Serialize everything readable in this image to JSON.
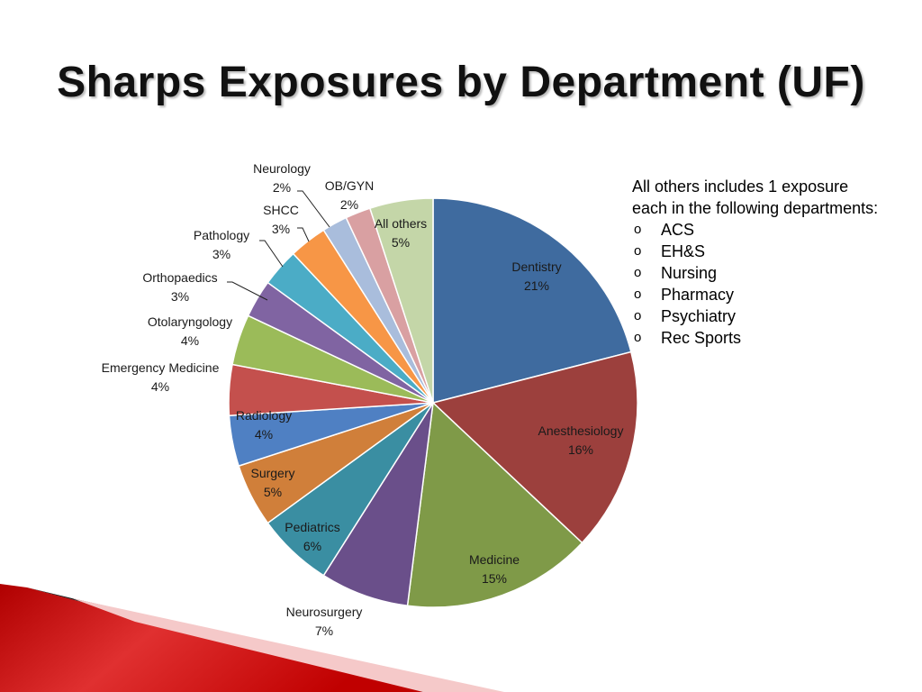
{
  "slide": {
    "title": "Sharps Exposures by Department (UF)"
  },
  "note": {
    "text_line1": "All others includes 1 exposure",
    "text_line2": "each in the following departments:",
    "bullet_glyph": "o",
    "items": [
      "ACS",
      "EH&S",
      "Nursing",
      "Pharmacy",
      "Psychiatry",
      "Rec Sports"
    ]
  },
  "chart_data": {
    "type": "pie",
    "title": "",
    "start": "12 o'clock",
    "direction": "clockwise",
    "slices": [
      {
        "name": "Dentistry",
        "value": 21,
        "label": "21%",
        "color": "#3f6b9f"
      },
      {
        "name": "Anesthesiology",
        "value": 16,
        "label": "16%",
        "color": "#9c403d"
      },
      {
        "name": "Medicine",
        "value": 15,
        "label": "15%",
        "color": "#7f9a48"
      },
      {
        "name": "Neurosurgery",
        "value": 7,
        "label": "7%",
        "color": "#6a4f8a"
      },
      {
        "name": "Pediatrics",
        "value": 6,
        "label": "6%",
        "color": "#3a8ea2"
      },
      {
        "name": "Surgery",
        "value": 5,
        "label": "5%",
        "color": "#d07f3a"
      },
      {
        "name": "Radiology",
        "value": 4,
        "label": "4%",
        "color": "#4f80c3"
      },
      {
        "name": "Emergency Medicine",
        "value": 4,
        "label": "4%",
        "color": "#c4504d"
      },
      {
        "name": "Otolaryngology",
        "value": 4,
        "label": "4%",
        "color": "#9bbb59"
      },
      {
        "name": "Orthopaedics",
        "value": 3,
        "label": "3%",
        "color": "#8064a2"
      },
      {
        "name": "Pathology",
        "value": 3,
        "label": "3%",
        "color": "#4bacc6"
      },
      {
        "name": "SHCC",
        "value": 3,
        "label": "3%",
        "color": "#f79646"
      },
      {
        "name": "Neurology",
        "value": 2,
        "label": "2%",
        "color": "#a9bddc"
      },
      {
        "name": "OB/GYN",
        "value": 2,
        "label": "2%",
        "color": "#d9a0a2"
      },
      {
        "name": "All others",
        "value": 5,
        "label": "5%",
        "color": "#c4d6a8"
      }
    ]
  }
}
